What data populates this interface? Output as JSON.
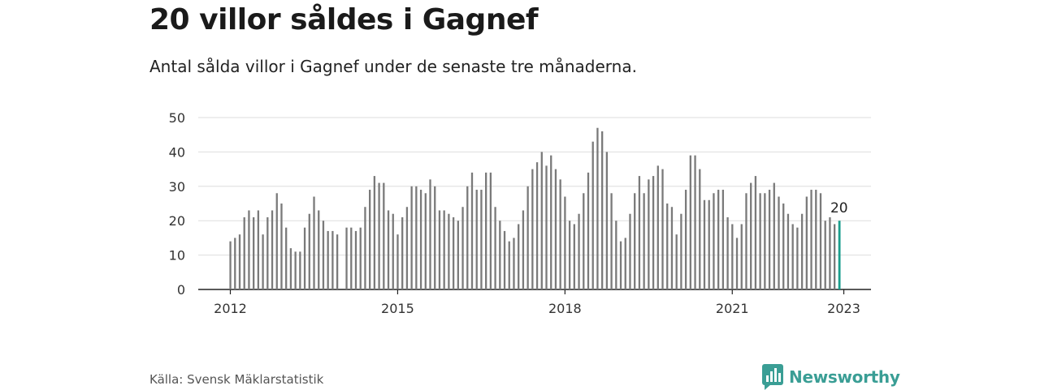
{
  "title": "20 villor såldes i Gagnef",
  "subtitle": "Antal sålda villor i Gagnef under de senaste tre månaderna.",
  "source": "Källa: Svensk Mäklarstatistik",
  "brand": "Newsworthy",
  "colors": {
    "bar": "#7a7a7a",
    "highlight": "#1a9e8c",
    "grid": "#dddddd",
    "brand": "#3a9e95"
  },
  "chart_data": {
    "type": "bar",
    "title": "",
    "xlabel": "",
    "ylabel": "",
    "ylim": [
      0,
      50
    ],
    "yticks": [
      0,
      10,
      20,
      30,
      40,
      50
    ],
    "xtick_labels": [
      "2012",
      "2015",
      "2018",
      "2021",
      "2023"
    ],
    "grid": true,
    "start": "2012-01",
    "end": "2023-01",
    "values": [
      14,
      15,
      16,
      21,
      23,
      21,
      23,
      16,
      21,
      23,
      28,
      25,
      18,
      12,
      11,
      11,
      18,
      22,
      27,
      23,
      20,
      17,
      17,
      16,
      null,
      18,
      18,
      17,
      18,
      24,
      29,
      33,
      31,
      31,
      23,
      22,
      16,
      21,
      24,
      30,
      30,
      29,
      28,
      32,
      30,
      23,
      23,
      22,
      21,
      20,
      24,
      30,
      34,
      29,
      29,
      34,
      34,
      24,
      20,
      17,
      14,
      15,
      19,
      23,
      30,
      35,
      37,
      40,
      36,
      39,
      35,
      32,
      27,
      20,
      19,
      22,
      28,
      34,
      43,
      47,
      46,
      40,
      28,
      20,
      14,
      15,
      22,
      28,
      33,
      28,
      32,
      33,
      36,
      35,
      25,
      24,
      16,
      22,
      29,
      39,
      39,
      35,
      26,
      26,
      28,
      29,
      29,
      21,
      19,
      15,
      19,
      28,
      31,
      33,
      28,
      28,
      29,
      31,
      27,
      25,
      22,
      19,
      18,
      22,
      27,
      29,
      29,
      28,
      20,
      21,
      19,
      20
    ],
    "highlight_label": "20"
  }
}
